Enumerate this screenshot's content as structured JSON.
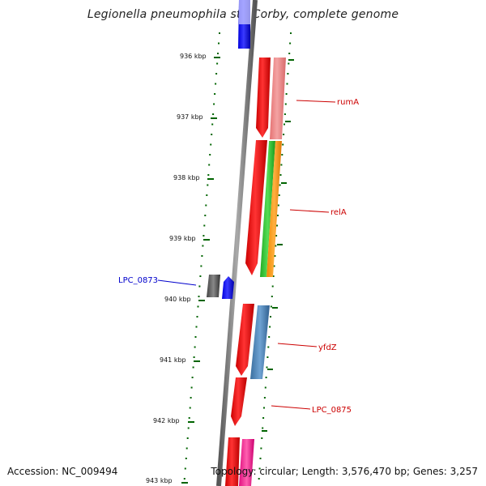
{
  "title": "Legionella pneumophila str. Corby, complete genome",
  "accession": "Accession: NC_009494",
  "summary": "Topology: circular; Length: 3,576,470 bp; Genes: 3,257",
  "ticks": [
    "936 kbp",
    "937 kbp",
    "938 kbp",
    "939 kbp",
    "940 kbp",
    "941 kbp",
    "942 kbp",
    "943 kbp"
  ],
  "genes": [
    {
      "label": "",
      "color": "#0000ff"
    },
    {
      "label": "rumA",
      "color": "#ff0000"
    },
    {
      "label": "",
      "color": "#f08080"
    },
    {
      "label": "relA",
      "color": "#ff0000"
    },
    {
      "label": "",
      "color": "#33cc33"
    },
    {
      "label": "",
      "color": "#ff9900"
    },
    {
      "label": "LPC_0873",
      "color": "#0000cc"
    },
    {
      "label": "",
      "color": "#666666"
    },
    {
      "label": "",
      "color": "#0000ff"
    },
    {
      "label": "yfdZ",
      "color": "#ff0000"
    },
    {
      "label": "",
      "color": "#4682b4"
    },
    {
      "label": "LPC_0875",
      "color": "#ff0000"
    },
    {
      "label": "",
      "color": "#ff0000"
    },
    {
      "label": "",
      "color": "#ff1493"
    }
  ],
  "colors": {
    "tick": "#006400",
    "backbone": "#808080",
    "label_red": "#cc0000",
    "label_blue": "#0000cc"
  }
}
